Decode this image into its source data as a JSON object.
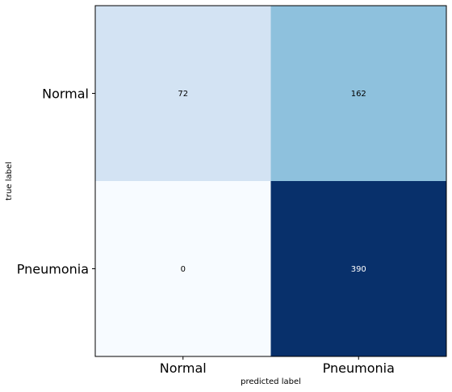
{
  "chart_data": {
    "type": "heatmap",
    "title": "",
    "xlabel": "predicted label",
    "ylabel": "true label",
    "x_categories": [
      "Normal",
      "Pneumonia"
    ],
    "y_categories": [
      "Normal",
      "Pneumonia"
    ],
    "values": [
      [
        72,
        162
      ],
      [
        0,
        390
      ]
    ],
    "colormap": "Blues",
    "color_low": "#f7fbff",
    "color_high": "#08306b",
    "text_color_light_cell": "#000000",
    "text_color_dark_cell": "#ffffff",
    "grid": false,
    "legend": "none"
  }
}
